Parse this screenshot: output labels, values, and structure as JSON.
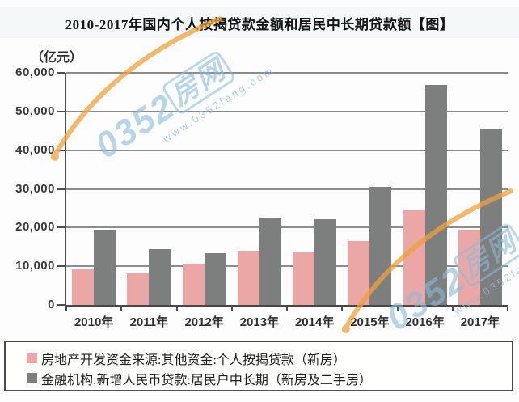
{
  "title": "2010-2017年国内个人按揭贷款金额和居民中长期贷款额【图】",
  "unit_label": "（亿元）",
  "watermark": {
    "brand_prefix": "0352",
    "brand_suffix": "房网",
    "url": "www.0352fang.com"
  },
  "legend": [
    {
      "label": "房地产开发资金来源:其他资金:个人按揭贷款（新房）",
      "color": "#eba7a5"
    },
    {
      "label": "金融机构:新增人民币贷款:居民户中长期（新房及二手房）",
      "color": "#7d7e7e"
    }
  ],
  "colors": {
    "pink_bar": "#eba7a5",
    "gray_bar": "#7d7e7e",
    "gridline": "#8c8c8c",
    "axis": "#4d4d4d",
    "title_bg": "#f4f8f9",
    "watermark_blue": "#87bcda",
    "watermark_orange": "#f0a13a"
  },
  "chart_data": {
    "type": "bar",
    "title": "2010-2017年国内个人按揭贷款金额和居民中长期贷款额【图】",
    "categories": [
      "2010年",
      "2011年",
      "2012年",
      "2013年",
      "2014年",
      "2015年",
      "2016年",
      "2017年"
    ],
    "series": [
      {
        "name": "房地产开发资金来源:其他资金:个人按揭贷款（新房）",
        "color": "#eba7a5",
        "values": [
          9200,
          8200,
          10600,
          14000,
          13500,
          16600,
          24400,
          19500
        ]
      },
      {
        "name": "金融机构:新增人民币贷款:居民户中长期（新房及二手房）",
        "color": "#7d7e7e",
        "values": [
          19400,
          14500,
          13300,
          22600,
          22200,
          30500,
          56800,
          45500
        ]
      }
    ],
    "xlabel": "",
    "ylabel": "（亿元）",
    "ylim": [
      0,
      60000
    ],
    "ytick_values": [
      60000,
      50000,
      40000,
      30000,
      20000,
      10000,
      0
    ],
    "yticks": [
      "60,000",
      "50,000",
      "40,000",
      "30,000",
      "20,000",
      "10,000",
      "0"
    ],
    "grid": true,
    "legend_position": "bottom"
  }
}
